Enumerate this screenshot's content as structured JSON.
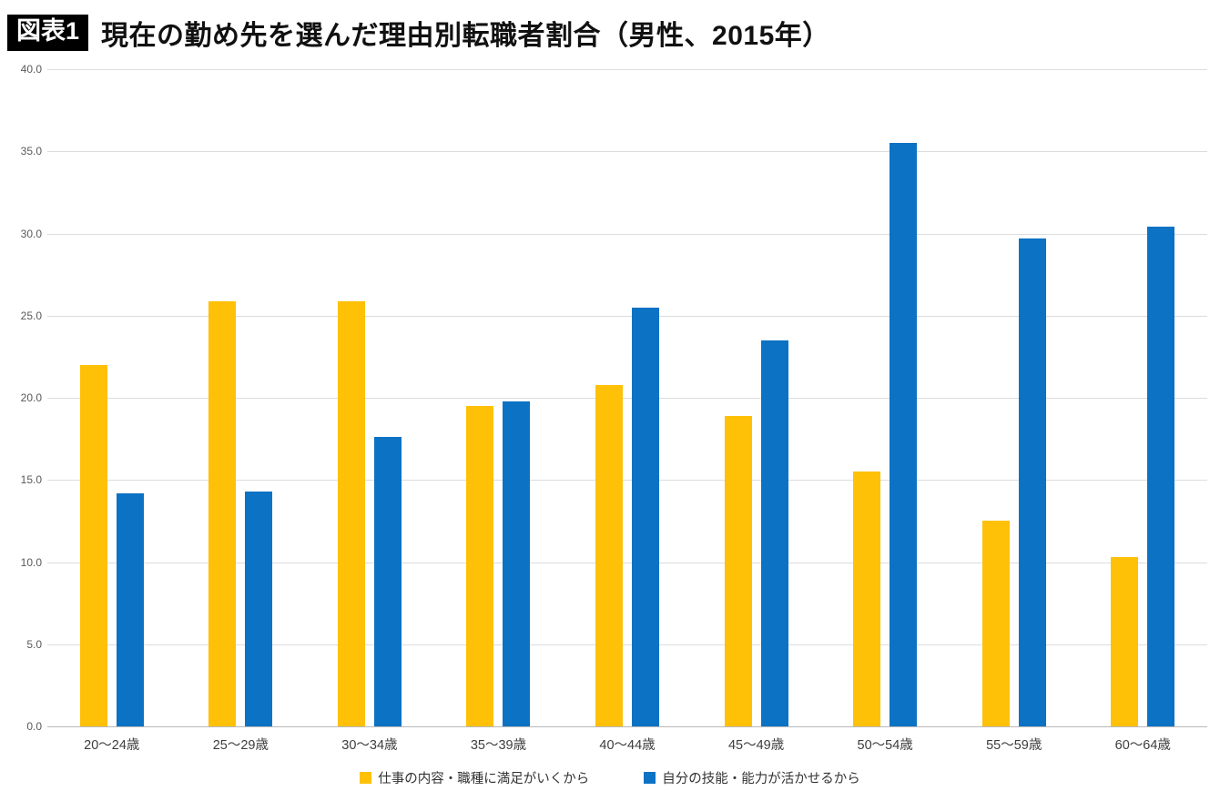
{
  "title": {
    "badge": "図表1",
    "text": "現在の勤め先を選んだ理由別転職者割合（男性、2015年）"
  },
  "chart_data": {
    "type": "bar",
    "title": "現在の勤め先を選んだ理由別転職者割合（男性、2015年）",
    "categories": [
      "20～24歳",
      "25～29歳",
      "30～34歳",
      "35～39歳",
      "40～44歳",
      "45～49歳",
      "50～54歳",
      "55～59歳",
      "60～64歳"
    ],
    "series": [
      {
        "name": "仕事の内容・職種に満足がいくから",
        "color": "#FFC008",
        "values": [
          22.0,
          25.9,
          25.9,
          19.5,
          20.8,
          18.9,
          15.5,
          12.5,
          10.3
        ]
      },
      {
        "name": "自分の技能・能力が活かせるから",
        "color": "#0C72C4",
        "values": [
          14.2,
          14.3,
          17.6,
          19.8,
          25.5,
          23.5,
          35.5,
          29.7,
          30.4
        ]
      }
    ],
    "xlabel": "",
    "ylabel": "",
    "ylim": [
      0,
      40
    ],
    "ytick_step": 5,
    "ytick_format": "one_decimal",
    "grid": true,
    "legend_position": "bottom"
  }
}
